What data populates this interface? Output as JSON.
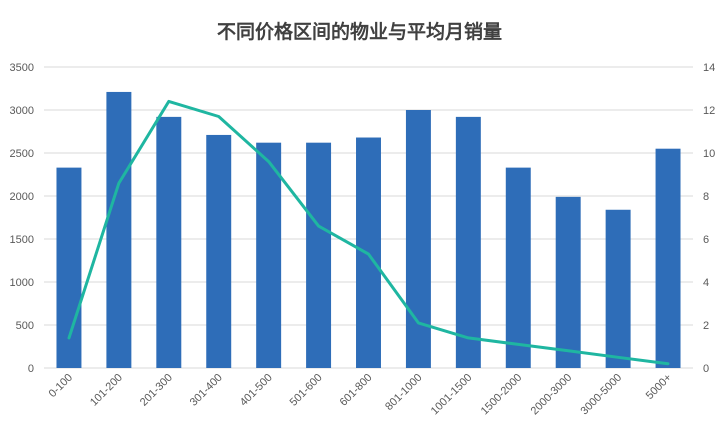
{
  "chart_data": {
    "type": "bar",
    "title": "不同价格区间的物业与平均月销量",
    "categories": [
      "0-100",
      "101-200",
      "201-300",
      "301-400",
      "401-500",
      "501-600",
      "601-800",
      "801-1000",
      "1001-1500",
      "1500-2000",
      "2000-3000",
      "3000-5000",
      "5000+"
    ],
    "series": [
      {
        "type": "bar",
        "axis": "left",
        "values": [
          2330,
          3210,
          2920,
          2710,
          2620,
          2620,
          2680,
          3000,
          2920,
          2330,
          1990,
          1840,
          2550
        ]
      },
      {
        "type": "line",
        "axis": "right",
        "values": [
          1.4,
          8.6,
          12.4,
          11.7,
          9.6,
          6.6,
          5.3,
          2.1,
          1.4,
          1.1,
          0.8,
          0.5,
          0.2
        ]
      }
    ],
    "y_left": {
      "min": 0,
      "max": 3500,
      "step": 500,
      "ticks": [
        "0",
        "500",
        "1000",
        "1500",
        "2000",
        "2500",
        "3000",
        "3500"
      ]
    },
    "y_right": {
      "min": 0,
      "max": 14,
      "step": 2,
      "ticks": [
        "0",
        "2",
        "4",
        "6",
        "8",
        "10",
        "12",
        "14"
      ]
    },
    "grid": true,
    "legend": "none",
    "colors": {
      "bar": "#2e6db8",
      "line": "#1fb6a1",
      "grid": "#d9d9d9",
      "text": "#595959"
    }
  }
}
